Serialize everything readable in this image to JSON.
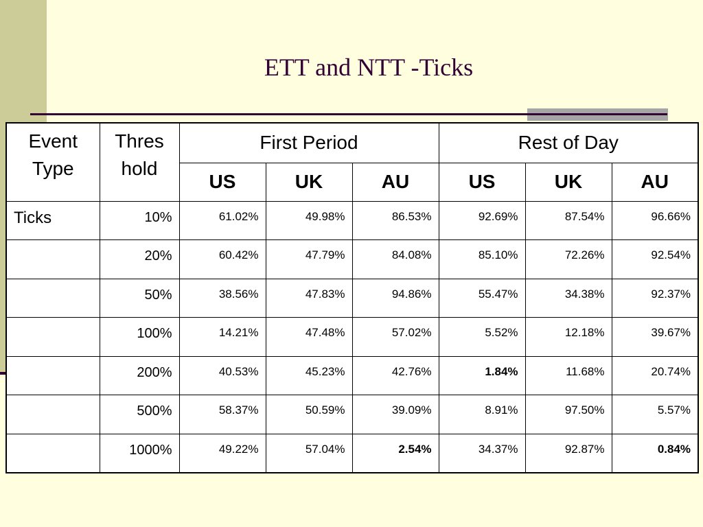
{
  "title": "ETT and NTT -Ticks",
  "headers": {
    "event_type": "Event Type",
    "threshold": "Thres hold",
    "first_period": "First Period",
    "rest_of_day": "Rest of Day",
    "markets": [
      "US",
      "UK",
      "AU",
      "US",
      "UK",
      "AU"
    ]
  },
  "event_label": "Ticks",
  "rows": [
    {
      "threshold": "10%",
      "values": [
        "61.02%",
        "49.98%",
        "86.53%",
        "92.69%",
        "87.54%",
        "96.66%"
      ]
    },
    {
      "threshold": "20%",
      "values": [
        "60.42%",
        "47.79%",
        "84.08%",
        "85.10%",
        "72.26%",
        "92.54%"
      ]
    },
    {
      "threshold": "50%",
      "values": [
        "38.56%",
        "47.83%",
        "94.86%",
        "55.47%",
        "34.38%",
        "92.37%"
      ]
    },
    {
      "threshold": "100%",
      "values": [
        "14.21%",
        "47.48%",
        "57.02%",
        "5.52%",
        "12.18%",
        "39.67%"
      ]
    },
    {
      "threshold": "200%",
      "values": [
        "40.53%",
        "45.23%",
        "42.76%",
        "1.84%",
        "11.68%",
        "20.74%"
      ]
    },
    {
      "threshold": "500%",
      "values": [
        "58.37%",
        "50.59%",
        "39.09%",
        "8.91%",
        "97.50%",
        "5.57%"
      ]
    },
    {
      "threshold": "1000%",
      "values": [
        "49.22%",
        "57.04%",
        "2.54%",
        "34.37%",
        "92.87%",
        "0.84%"
      ]
    }
  ],
  "bold_cells": [
    [
      4,
      3
    ],
    [
      6,
      2
    ],
    [
      6,
      5
    ]
  ]
}
